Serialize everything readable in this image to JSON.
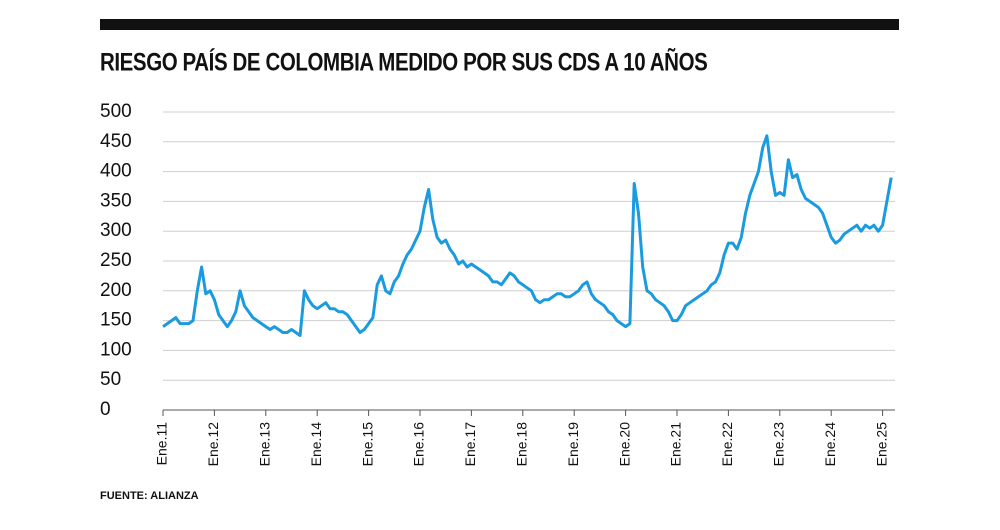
{
  "chart_data": {
    "type": "line",
    "title": "RIESGO PAÍS DE COLOMBIA MEDIDO POR SUS CDS A 10 AÑOS",
    "source": "FUENTE: ALIANZA",
    "x": [
      "2011-01",
      "2011-02",
      "2011-03",
      "2011-04",
      "2011-05",
      "2011-06",
      "2011-07",
      "2011-08",
      "2011-09",
      "2011-10",
      "2011-11",
      "2011-12",
      "2012-01",
      "2012-02",
      "2012-03",
      "2012-04",
      "2012-05",
      "2012-06",
      "2012-07",
      "2012-08",
      "2012-09",
      "2012-10",
      "2012-11",
      "2012-12",
      "2013-01",
      "2013-02",
      "2013-03",
      "2013-04",
      "2013-05",
      "2013-06",
      "2013-07",
      "2013-08",
      "2013-09",
      "2013-10",
      "2013-11",
      "2013-12",
      "2014-01",
      "2014-02",
      "2014-03",
      "2014-04",
      "2014-05",
      "2014-06",
      "2014-07",
      "2014-08",
      "2014-09",
      "2014-10",
      "2014-11",
      "2014-12",
      "2015-01",
      "2015-02",
      "2015-03",
      "2015-04",
      "2015-05",
      "2015-06",
      "2015-07",
      "2015-08",
      "2015-09",
      "2015-10",
      "2015-11",
      "2015-12",
      "2016-01",
      "2016-02",
      "2016-03",
      "2016-04",
      "2016-05",
      "2016-06",
      "2016-07",
      "2016-08",
      "2016-09",
      "2016-10",
      "2016-11",
      "2016-12",
      "2017-01",
      "2017-02",
      "2017-03",
      "2017-04",
      "2017-05",
      "2017-06",
      "2017-07",
      "2017-08",
      "2017-09",
      "2017-10",
      "2017-11",
      "2017-12",
      "2018-01",
      "2018-02",
      "2018-03",
      "2018-04",
      "2018-05",
      "2018-06",
      "2018-07",
      "2018-08",
      "2018-09",
      "2018-10",
      "2018-11",
      "2018-12",
      "2019-01",
      "2019-02",
      "2019-03",
      "2019-04",
      "2019-05",
      "2019-06",
      "2019-07",
      "2019-08",
      "2019-09",
      "2019-10",
      "2019-11",
      "2019-12",
      "2020-01",
      "2020-02",
      "2020-03",
      "2020-04",
      "2020-05",
      "2020-06",
      "2020-07",
      "2020-08",
      "2020-09",
      "2020-10",
      "2020-11",
      "2020-12",
      "2021-01",
      "2021-02",
      "2021-03",
      "2021-04",
      "2021-05",
      "2021-06",
      "2021-07",
      "2021-08",
      "2021-09",
      "2021-10",
      "2021-11",
      "2021-12",
      "2022-01",
      "2022-02",
      "2022-03",
      "2022-04",
      "2022-05",
      "2022-06",
      "2022-07",
      "2022-08",
      "2022-09",
      "2022-10",
      "2022-11",
      "2022-12",
      "2023-01",
      "2023-02",
      "2023-03",
      "2023-04",
      "2023-05",
      "2023-06",
      "2023-07",
      "2023-08",
      "2023-09",
      "2023-10",
      "2023-11",
      "2023-12",
      "2024-01",
      "2024-02",
      "2024-03",
      "2024-04",
      "2024-05",
      "2024-06",
      "2024-07",
      "2024-08",
      "2024-09",
      "2024-10",
      "2024-11",
      "2024-12",
      "2025-01",
      "2025-02",
      "2025-03"
    ],
    "series": [
      {
        "name": "CDS 10 años",
        "color": "#1a9be0",
        "values": [
          140,
          145,
          150,
          155,
          145,
          145,
          145,
          150,
          200,
          240,
          195,
          200,
          185,
          160,
          150,
          140,
          150,
          165,
          200,
          175,
          165,
          155,
          150,
          145,
          140,
          135,
          140,
          135,
          130,
          130,
          135,
          130,
          125,
          200,
          185,
          175,
          170,
          175,
          180,
          170,
          170,
          165,
          165,
          160,
          150,
          140,
          130,
          135,
          145,
          155,
          210,
          225,
          200,
          195,
          215,
          225,
          245,
          260,
          270,
          285,
          300,
          340,
          370,
          320,
          290,
          280,
          285,
          270,
          260,
          245,
          250,
          240,
          245,
          240,
          235,
          230,
          225,
          215,
          215,
          210,
          220,
          230,
          225,
          215,
          210,
          205,
          200,
          185,
          180,
          185,
          185,
          190,
          195,
          195,
          190,
          190,
          195,
          200,
          210,
          215,
          195,
          185,
          180,
          175,
          165,
          160,
          150,
          145,
          140,
          145,
          380,
          330,
          240,
          200,
          195,
          185,
          180,
          175,
          165,
          150,
          150,
          160,
          175,
          180,
          185,
          190,
          195,
          200,
          210,
          215,
          230,
          260,
          280,
          280,
          270,
          290,
          330,
          360,
          380,
          400,
          440,
          460,
          400,
          360,
          365,
          360,
          420,
          390,
          395,
          370,
          355,
          350,
          345,
          340,
          330,
          310,
          290,
          280,
          285,
          295,
          300,
          305,
          310,
          300,
          310,
          305,
          310,
          300,
          310,
          350,
          390
        ]
      }
    ],
    "xticks": [
      {
        "value": "2011-01",
        "label": "Ene.11"
      },
      {
        "value": "2012-01",
        "label": "Ene.12"
      },
      {
        "value": "2013-01",
        "label": "Ene.13"
      },
      {
        "value": "2014-01",
        "label": "Ene.14"
      },
      {
        "value": "2015-01",
        "label": "Ene.15"
      },
      {
        "value": "2016-01",
        "label": "Ene.16"
      },
      {
        "value": "2017-01",
        "label": "Ene.17"
      },
      {
        "value": "2018-01",
        "label": "Ene.18"
      },
      {
        "value": "2019-01",
        "label": "Ene.19"
      },
      {
        "value": "2020-01",
        "label": "Ene.20"
      },
      {
        "value": "2021-01",
        "label": "Ene.21"
      },
      {
        "value": "2022-01",
        "label": "Ene.22"
      },
      {
        "value": "2023-01",
        "label": "Ene.23"
      },
      {
        "value": "2024-01",
        "label": "Ene.24"
      },
      {
        "value": "2025-01",
        "label": "Ene.25"
      }
    ],
    "ylim": [
      0,
      500
    ],
    "yticks": [
      0,
      50,
      100,
      150,
      200,
      250,
      300,
      350,
      400,
      450,
      500
    ],
    "grid": true
  }
}
